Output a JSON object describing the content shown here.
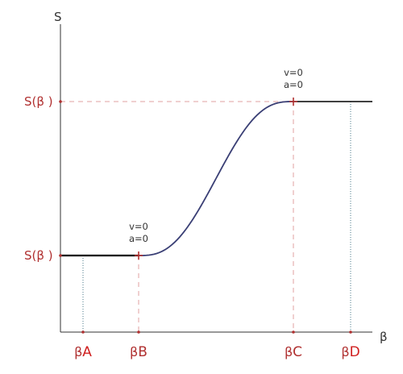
{
  "chart_data": {
    "type": "line",
    "xlabel": "β",
    "ylabel": "S",
    "x_ticks": [
      {
        "id": "A",
        "prefix": "β",
        "letter": "A",
        "value": 1
      },
      {
        "id": "B",
        "prefix": "β",
        "letter": "B",
        "value": 2
      },
      {
        "id": "C",
        "prefix": "β",
        "letter": "C",
        "value": 5
      },
      {
        "id": "D",
        "prefix": "β",
        "letter": "D",
        "value": 6
      }
    ],
    "y_ticks": [
      {
        "id": "low",
        "label": "S(β  )",
        "value": 1
      },
      {
        "id": "high",
        "label": "S(β  )",
        "value": 4
      }
    ],
    "xlim": [
      0,
      6.4
    ],
    "ylim": [
      0,
      5.5
    ],
    "grid": false,
    "series": [
      {
        "segment": "dwell-low",
        "x": [
          0,
          2
        ],
        "y": [
          1,
          1
        ],
        "color": "#000000"
      },
      {
        "segment": "rise",
        "x": [
          2,
          5
        ],
        "y": [
          1,
          4
        ],
        "color": "#3a3f75"
      },
      {
        "segment": "dwell-high",
        "x": [
          5,
          6.4
        ],
        "y": [
          4,
          4
        ],
        "color": "#000000"
      }
    ],
    "annotations": [
      {
        "id": "start",
        "lines": [
          "v=0",
          "a=0"
        ],
        "x": 2,
        "y": 1
      },
      {
        "id": "end",
        "lines": [
          "v=0",
          "a=0"
        ],
        "x": 5,
        "y": 4
      }
    ],
    "colors": {
      "label_red": "#b03030",
      "letter_red": "#d02020",
      "guide_pink": "#e0a0a0",
      "guide_teal": "#4a7a8a",
      "axis": "#333333"
    }
  }
}
